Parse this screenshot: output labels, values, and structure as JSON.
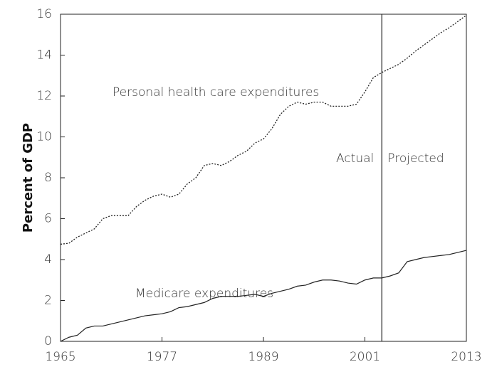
{
  "chart_data": {
    "type": "line",
    "y_label": "Percent of GDP",
    "x": [
      1965,
      1966,
      1967,
      1968,
      1969,
      1970,
      1971,
      1972,
      1973,
      1974,
      1975,
      1976,
      1977,
      1978,
      1979,
      1980,
      1981,
      1982,
      1983,
      1984,
      1985,
      1986,
      1987,
      1988,
      1989,
      1990,
      1991,
      1992,
      1993,
      1994,
      1995,
      1996,
      1997,
      1998,
      1999,
      2000,
      2001,
      2002,
      2003,
      2004,
      2005,
      2006,
      2007,
      2008,
      2009,
      2010,
      2011,
      2012,
      2013
    ],
    "series": [
      {
        "name": "Personal health care expenditures",
        "color": "#222222",
        "style": "dotted",
        "values": [
          4.75,
          4.8,
          5.1,
          5.3,
          5.5,
          6.0,
          6.15,
          6.15,
          6.15,
          6.6,
          6.9,
          7.1,
          7.2,
          7.05,
          7.2,
          7.7,
          8.0,
          8.6,
          8.7,
          8.6,
          8.8,
          9.1,
          9.3,
          9.7,
          9.9,
          10.4,
          11.1,
          11.5,
          11.7,
          11.6,
          11.7,
          11.7,
          11.5,
          11.5,
          11.5,
          11.6,
          12.2,
          12.9,
          13.15,
          13.35,
          13.55,
          13.85,
          14.2,
          14.5,
          14.8,
          15.1,
          15.35,
          15.65,
          15.95
        ]
      },
      {
        "name": "Medicare expenditures",
        "color": "#222222",
        "style": "solid",
        "values": [
          0,
          0.2,
          0.3,
          0.65,
          0.75,
          0.75,
          0.85,
          0.95,
          1.05,
          1.15,
          1.25,
          1.3,
          1.35,
          1.45,
          1.65,
          1.7,
          1.8,
          1.9,
          2.1,
          2.2,
          2.2,
          2.2,
          2.25,
          2.3,
          2.2,
          2.35,
          2.45,
          2.55,
          2.7,
          2.75,
          2.9,
          3.0,
          3.0,
          2.95,
          2.85,
          2.8,
          3.0,
          3.1,
          3.1,
          3.2,
          3.35,
          3.9,
          4.0,
          4.1,
          4.15,
          4.2,
          4.25,
          4.35,
          4.45
        ]
      }
    ],
    "divider_x": 2003,
    "divider_labels": [
      "Actual",
      "Projected"
    ],
    "xlim": [
      1965,
      2013
    ],
    "xticks": [
      1965,
      1977,
      1989,
      2001,
      2013
    ],
    "ylim": [
      0,
      16
    ],
    "yticks": [
      0,
      2,
      4,
      6,
      8,
      10,
      12,
      14,
      16
    ]
  }
}
